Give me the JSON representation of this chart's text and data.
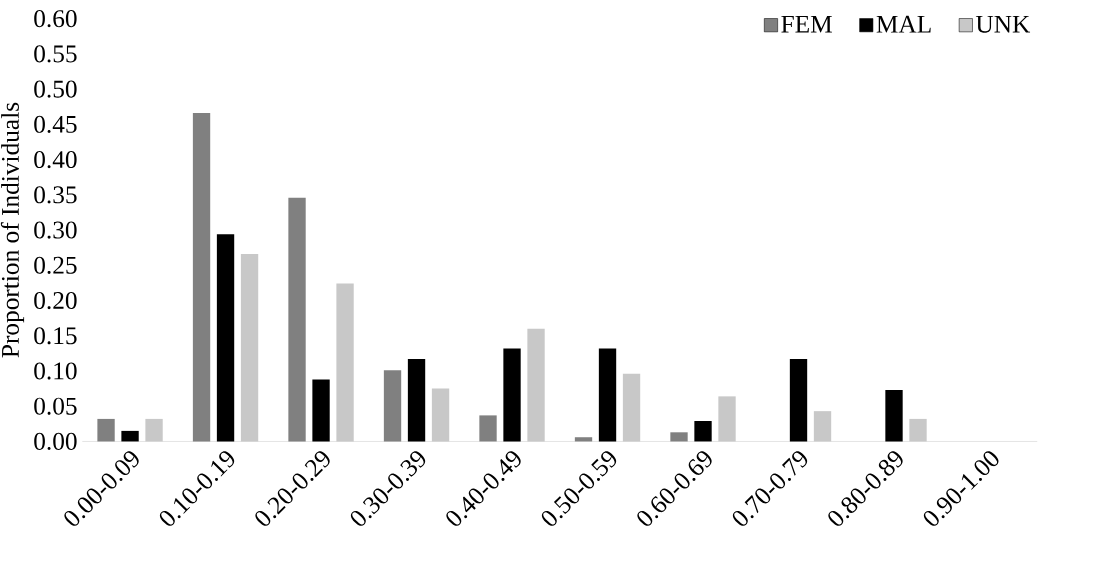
{
  "chart_data": {
    "type": "bar",
    "ylabel": "Proportion of Individuals",
    "categories": [
      "0.00-0.09",
      "0.10-0.19",
      "0.20-0.29",
      "0.30-0.39",
      "0.40-0.49",
      "0.50-0.59",
      "0.60-0.69",
      "0.70-0.79",
      "0.80-0.89",
      "0.90-1.00"
    ],
    "series": [
      {
        "name": "FEM",
        "color": "#808080",
        "values": [
          0.032,
          0.466,
          0.346,
          0.101,
          0.037,
          0.006,
          0.013,
          0,
          0,
          0
        ]
      },
      {
        "name": "MAL",
        "color": "#000000",
        "values": [
          0.015,
          0.294,
          0.088,
          0.117,
          0.132,
          0.132,
          0.029,
          0.117,
          0.073,
          0
        ]
      },
      {
        "name": "UNK",
        "color": "#c8c8c8",
        "values": [
          0.032,
          0.266,
          0.224,
          0.075,
          0.16,
          0.096,
          0.064,
          0.043,
          0.032,
          0
        ]
      }
    ],
    "ylim": [
      0,
      0.6
    ],
    "yticks": [
      {
        "value": 0,
        "label": "0.00"
      },
      {
        "value": 0.05,
        "label": "0.05"
      },
      {
        "value": 0.1,
        "label": "0.10"
      },
      {
        "value": 0.15,
        "label": "0.15"
      },
      {
        "value": 0.2,
        "label": "0.20"
      },
      {
        "value": 0.25,
        "label": "0.25"
      },
      {
        "value": 0.3,
        "label": "0.30"
      },
      {
        "value": 0.35,
        "label": "0.35"
      },
      {
        "value": 0.4,
        "label": "0.40"
      },
      {
        "value": 0.45,
        "label": "0.45"
      },
      {
        "value": 0.5,
        "label": "0.50"
      },
      {
        "value": 0.55,
        "label": "0.55"
      },
      {
        "value": 0.6,
        "label": "0.60"
      }
    ],
    "legend": "top right",
    "grid": false
  }
}
